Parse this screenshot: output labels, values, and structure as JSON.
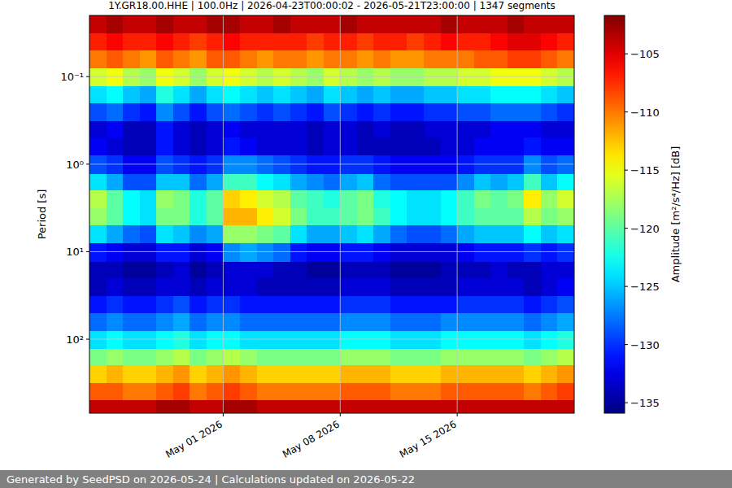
{
  "chart_data": {
    "type": "heatmap",
    "title": "1Y.GR18.00.HHE | 100.0Hz | 2026-04-23T00:00:02 - 2026-05-21T23:00:00 | 1347 segments",
    "ylabel": "Period [s]",
    "annotations": [
      "Generated by SeedPSD on 2026-05-24 | Calculations updated on 2026-05-22"
    ],
    "log": "y",
    "grid": true,
    "xlim": [
      "2026-04-23",
      "2026-05-22"
    ],
    "xticks": [
      {
        "value": "2026-05-01",
        "label": "May 01 2026"
      },
      {
        "value": "2026-05-08",
        "label": "May 08 2026"
      },
      {
        "value": "2026-05-15",
        "label": "May 15 2026"
      }
    ],
    "ylim": [
      700,
      0.02
    ],
    "yticks": [
      {
        "value": 0.1,
        "label": "10⁻¹"
      },
      {
        "value": 1,
        "label": "10⁰"
      },
      {
        "value": 10,
        "label": "10¹"
      },
      {
        "value": 100,
        "label": "10²"
      }
    ],
    "x_edges": [
      "2026-04-23",
      "2026-04-24",
      "2026-04-25",
      "2026-04-26",
      "2026-04-27",
      "2026-04-28",
      "2026-04-29",
      "2026-04-30",
      "2026-05-01",
      "2026-05-02",
      "2026-05-03",
      "2026-05-04",
      "2026-05-05",
      "2026-05-06",
      "2026-05-07",
      "2026-05-08",
      "2026-05-09",
      "2026-05-10",
      "2026-05-11",
      "2026-05-12",
      "2026-05-13",
      "2026-05-14",
      "2026-05-15",
      "2026-05-16",
      "2026-05-17",
      "2026-05-18",
      "2026-05-19",
      "2026-05-20",
      "2026-05-21",
      "2026-05-22"
    ],
    "y_edges": [
      0.02,
      0.032,
      0.05,
      0.08,
      0.13,
      0.2,
      0.32,
      0.5,
      0.8,
      1.3,
      2,
      3.2,
      5,
      8,
      13,
      20,
      32,
      50,
      80,
      130,
      200,
      320,
      500,
      700
    ],
    "cells": [
      [
        -104,
        -103,
        -104,
        -104,
        -103,
        -104,
        -104,
        -103,
        -103,
        -104,
        -104,
        -103,
        -104,
        -104,
        -104,
        -103,
        -104,
        -104,
        -104,
        -104,
        -104,
        -103,
        -104,
        -104,
        -104,
        -103,
        -104,
        -104,
        -104
      ],
      [
        -107,
        -106,
        -107,
        -107,
        -106,
        -107,
        -108,
        -107,
        -106,
        -107,
        -107,
        -107,
        -107,
        -108,
        -107,
        -107,
        -108,
        -107,
        -107,
        -108,
        -107,
        -106,
        -107,
        -107,
        -106,
        -105,
        -105,
        -106,
        -107
      ],
      [
        -110,
        -109,
        -110,
        -111,
        -109,
        -110,
        -111,
        -109,
        -109,
        -110,
        -111,
        -110,
        -110,
        -111,
        -110,
        -110,
        -111,
        -110,
        -111,
        -111,
        -110,
        -110,
        -110,
        -109,
        -109,
        -108,
        -108,
        -109,
        -110
      ],
      [
        -116,
        -115,
        -117,
        -118,
        -115,
        -116,
        -118,
        -116,
        -115,
        -116,
        -117,
        -116,
        -117,
        -118,
        -116,
        -117,
        -118,
        -117,
        -118,
        -118,
        -117,
        -117,
        -116,
        -116,
        -115,
        -115,
        -115,
        -116,
        -117
      ],
      [
        -124,
        -123,
        -125,
        -126,
        -122,
        -124,
        -126,
        -124,
        -123,
        -124,
        -125,
        -124,
        -125,
        -126,
        -124,
        -125,
        -126,
        -125,
        -126,
        -126,
        -125,
        -125,
        -124,
        -124,
        -123,
        -123,
        -123,
        -124,
        -125
      ],
      [
        -129,
        -128,
        -130,
        -131,
        -127,
        -129,
        -131,
        -129,
        -128,
        -129,
        -130,
        -129,
        -130,
        -131,
        -129,
        -130,
        -131,
        -130,
        -131,
        -131,
        -130,
        -130,
        -129,
        -129,
        -128,
        -128,
        -128,
        -129,
        -130
      ],
      [
        -133,
        -132,
        -134,
        -134,
        -131,
        -133,
        -134,
        -133,
        -132,
        -133,
        -133,
        -133,
        -133,
        -134,
        -133,
        -133,
        -134,
        -133,
        -134,
        -134,
        -133,
        -133,
        -133,
        -133,
        -132,
        -132,
        -132,
        -133,
        -133
      ],
      [
        -132,
        -133,
        -134,
        -134,
        -131,
        -133,
        -134,
        -133,
        -131,
        -132,
        -133,
        -133,
        -133,
        -134,
        -133,
        -133,
        -134,
        -134,
        -134,
        -134,
        -134,
        -133,
        -133,
        -132,
        -132,
        -132,
        -131,
        -132,
        -132
      ],
      [
        -129,
        -130,
        -132,
        -132,
        -129,
        -130,
        -131,
        -130,
        -127,
        -127,
        -128,
        -129,
        -130,
        -131,
        -131,
        -130,
        -130,
        -131,
        -132,
        -132,
        -132,
        -132,
        -131,
        -130,
        -130,
        -130,
        -127,
        -129,
        -128
      ],
      [
        -124,
        -126,
        -129,
        -129,
        -125,
        -125,
        -128,
        -126,
        -121,
        -121,
        -123,
        -124,
        -126,
        -127,
        -128,
        -126,
        -125,
        -128,
        -129,
        -129,
        -129,
        -129,
        -127,
        -125,
        -126,
        -125,
        -121,
        -125,
        -123
      ],
      [
        -117,
        -120,
        -123,
        -124,
        -118,
        -119,
        -122,
        -120,
        -113,
        -114,
        -116,
        -117,
        -120,
        -121,
        -122,
        -120,
        -119,
        -122,
        -123,
        -124,
        -124,
        -123,
        -121,
        -119,
        -120,
        -119,
        -114,
        -118,
        -116
      ],
      [
        -118,
        -120,
        -123,
        -124,
        -119,
        -119,
        -122,
        -120,
        -112,
        -112,
        -114,
        -116,
        -119,
        -121,
        -121,
        -120,
        -119,
        -121,
        -123,
        -124,
        -124,
        -123,
        -121,
        -120,
        -120,
        -120,
        -117,
        -119,
        -118
      ],
      [
        -124,
        -126,
        -128,
        -129,
        -124,
        -125,
        -127,
        -126,
        -118,
        -118,
        -119,
        -120,
        -124,
        -126,
        -126,
        -125,
        -124,
        -126,
        -128,
        -129,
        -129,
        -128,
        -126,
        -125,
        -125,
        -125,
        -123,
        -125,
        -124
      ],
      [
        -131,
        -132,
        -133,
        -133,
        -131,
        -131,
        -133,
        -132,
        -127,
        -126,
        -127,
        -128,
        -131,
        -132,
        -132,
        -131,
        -131,
        -132,
        -133,
        -133,
        -133,
        -133,
        -132,
        -131,
        -131,
        -131,
        -130,
        -131,
        -130
      ],
      [
        -134,
        -134,
        -135,
        -135,
        -134,
        -133,
        -135,
        -134,
        -133,
        -133,
        -133,
        -134,
        -134,
        -135,
        -135,
        -134,
        -134,
        -134,
        -135,
        -135,
        -135,
        -134,
        -134,
        -134,
        -133,
        -134,
        -134,
        -133,
        -133
      ],
      [
        -134,
        -133,
        -134,
        -134,
        -133,
        -133,
        -134,
        -133,
        -133,
        -133,
        -134,
        -134,
        -134,
        -134,
        -134,
        -133,
        -133,
        -133,
        -134,
        -134,
        -134,
        -134,
        -133,
        -133,
        -133,
        -133,
        -134,
        -133,
        -132
      ],
      [
        -131,
        -130,
        -131,
        -131,
        -130,
        -129,
        -131,
        -130,
        -130,
        -131,
        -131,
        -131,
        -131,
        -131,
        -131,
        -130,
        -130,
        -130,
        -131,
        -131,
        -131,
        -131,
        -130,
        -130,
        -130,
        -130,
        -131,
        -130,
        -129
      ],
      [
        -128,
        -127,
        -128,
        -128,
        -127,
        -126,
        -128,
        -127,
        -127,
        -128,
        -128,
        -128,
        -128,
        -128,
        -128,
        -127,
        -127,
        -127,
        -128,
        -128,
        -128,
        -127,
        -127,
        -127,
        -127,
        -127,
        -128,
        -127,
        -126
      ],
      [
        -124,
        -123,
        -124,
        -124,
        -123,
        -122,
        -124,
        -123,
        -123,
        -124,
        -124,
        -124,
        -124,
        -124,
        -124,
        -123,
        -123,
        -123,
        -124,
        -124,
        -124,
        -123,
        -123,
        -123,
        -123,
        -123,
        -124,
        -123,
        -122
      ],
      [
        -119,
        -118,
        -119,
        -119,
        -118,
        -117,
        -119,
        -118,
        -117,
        -118,
        -119,
        -119,
        -119,
        -119,
        -119,
        -118,
        -118,
        -118,
        -119,
        -119,
        -119,
        -118,
        -118,
        -118,
        -118,
        -118,
        -119,
        -118,
        -117
      ],
      [
        -113,
        -112,
        -113,
        -113,
        -112,
        -111,
        -113,
        -112,
        -111,
        -112,
        -113,
        -113,
        -113,
        -113,
        -113,
        -112,
        -112,
        -112,
        -113,
        -113,
        -113,
        -112,
        -112,
        -112,
        -112,
        -112,
        -113,
        -112,
        -111
      ],
      [
        -109,
        -109,
        -110,
        -110,
        -109,
        -108,
        -110,
        -109,
        -108,
        -109,
        -110,
        -110,
        -110,
        -110,
        -110,
        -109,
        -109,
        -109,
        -110,
        -110,
        -110,
        -109,
        -109,
        -109,
        -109,
        -109,
        -110,
        -109,
        -108
      ],
      [
        -104,
        -104,
        -104,
        -104,
        -103,
        -103,
        -104,
        -104,
        -103,
        -103,
        -104,
        -104,
        -104,
        -104,
        -104,
        -104,
        -104,
        -104,
        -104,
        -104,
        -104,
        -104,
        -104,
        -104,
        -104,
        -104,
        -104,
        -104,
        -104
      ]
    ],
    "colorbar": {
      "label": "Amplitude [m²/s⁴/Hz] [dB]",
      "range": [
        -135.9,
        -101.7
      ],
      "ticks": [
        {
          "value": -105,
          "label": "−105"
        },
        {
          "value": -110,
          "label": "−110"
        },
        {
          "value": -115,
          "label": "−115"
        },
        {
          "value": -120,
          "label": "−120"
        },
        {
          "value": -125,
          "label": "−125"
        },
        {
          "value": -130,
          "label": "−130"
        },
        {
          "value": -135,
          "label": "−135"
        }
      ]
    }
  }
}
